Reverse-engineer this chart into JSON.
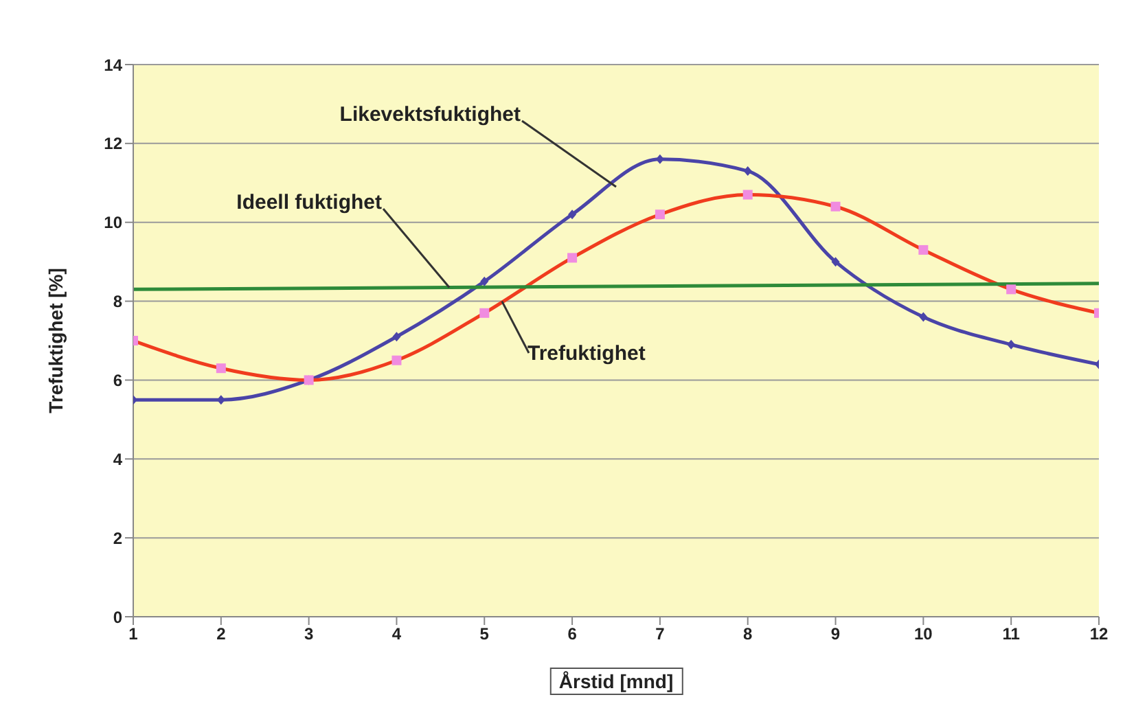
{
  "chart_data": {
    "type": "line",
    "xlabel": "Årstid [mnd]",
    "ylabel": "Trefuktighet [%]",
    "xlim": [
      1,
      12
    ],
    "xticks": [
      1,
      2,
      3,
      4,
      5,
      6,
      7,
      8,
      9,
      10,
      11,
      12
    ],
    "ylim": [
      0,
      14
    ],
    "yticks": [
      0,
      2,
      4,
      6,
      8,
      10,
      12,
      14
    ],
    "grid": "y",
    "legend": false,
    "annotations": [
      {
        "text": "Likevektsfuktighet",
        "x": 6.5,
        "y": 10.9
      },
      {
        "text": "Trefuktighet",
        "x": 5.2,
        "y": 8.0
      },
      {
        "text": "Ideell fuktighet",
        "x": 4.6,
        "y": 8.35
      }
    ],
    "series": [
      {
        "color": "#4a44a8",
        "marker": "diamond",
        "x": [
          1,
          2,
          3,
          4,
          5,
          6,
          7,
          8,
          9,
          10,
          11,
          12
        ],
        "values": [
          5.5,
          5.5,
          6.0,
          7.1,
          8.5,
          10.2,
          11.6,
          11.3,
          9.0,
          7.6,
          6.9,
          6.4
        ]
      },
      {
        "color": "#f03c1e",
        "marker": "square",
        "x": [
          1,
          2,
          3,
          4,
          5,
          6,
          7,
          8,
          9,
          10,
          11,
          12
        ],
        "values": [
          7.0,
          6.3,
          6.0,
          6.5,
          7.7,
          9.1,
          10.2,
          10.7,
          10.4,
          9.3,
          8.3,
          7.7
        ]
      },
      {
        "color": "#2e8b3a",
        "marker": "none",
        "x": [
          1,
          12
        ],
        "values": [
          8.3,
          8.45
        ]
      }
    ]
  }
}
